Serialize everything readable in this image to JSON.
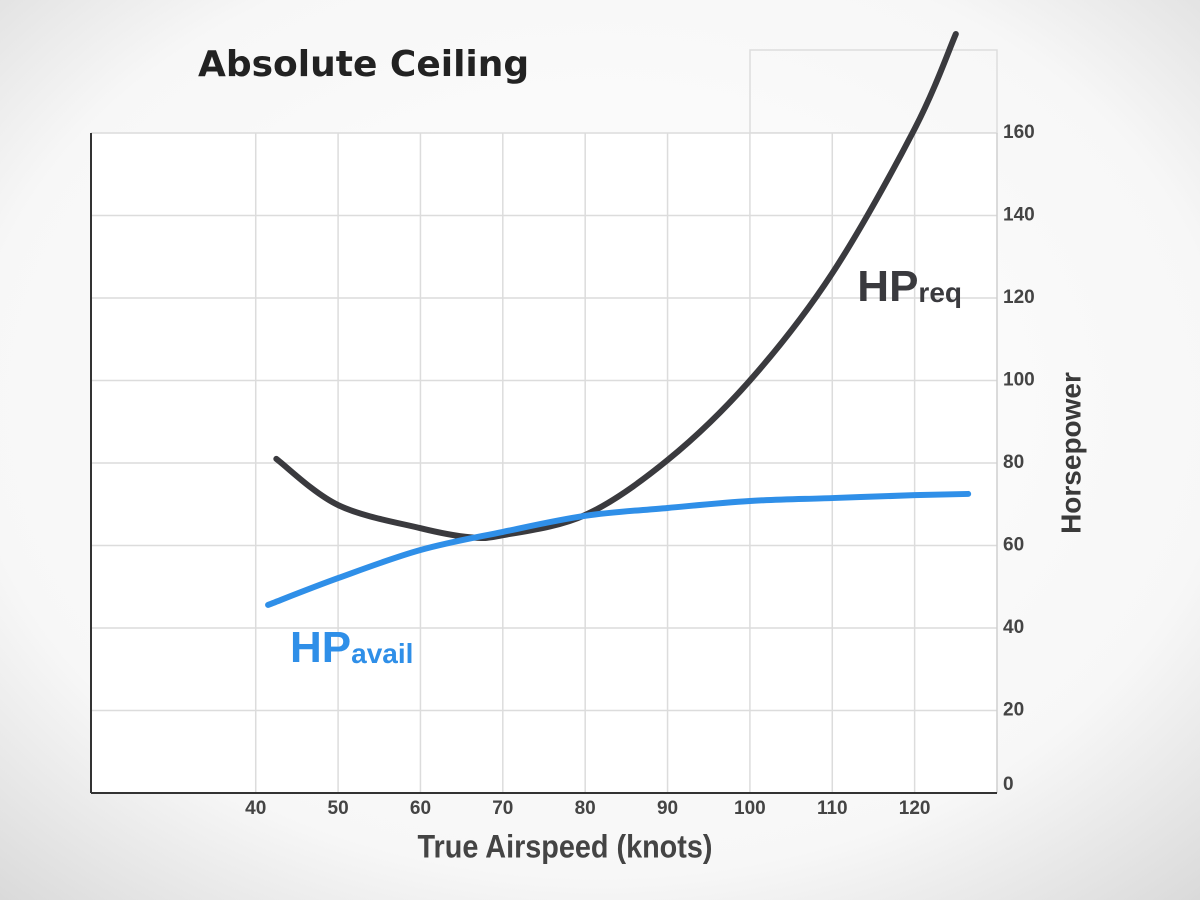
{
  "chart_data": {
    "type": "line",
    "title": "Absolute Ceiling",
    "x_label": "True Airspeed (knots)",
    "y_label": "Horsepower",
    "xlim": [
      20,
      130
    ],
    "xticks": [
      40,
      50,
      60,
      70,
      80,
      90,
      100,
      110,
      120
    ],
    "ylim": [
      0,
      160
    ],
    "yticks": [
      0,
      20,
      40,
      60,
      80,
      100,
      120,
      140,
      160
    ],
    "grid": true,
    "y_axis_side": "right",
    "series": [
      {
        "name": "HP",
        "name_sub": "req",
        "color": "#3a3a3e",
        "x": [
          42.5,
          50,
          60,
          66,
          70,
          80,
          90,
          100,
          110,
          120,
          125
        ],
        "values": [
          81,
          69.8,
          64.2,
          62,
          62.5,
          67.4,
          80.7,
          100,
          126,
          161,
          184
        ]
      },
      {
        "name": "HP",
        "name_sub": "avail",
        "color": "#2f8fe8",
        "x": [
          41.5,
          50,
          60,
          70,
          80,
          90,
          100,
          110,
          120,
          126.5
        ],
        "values": [
          45.6,
          52.1,
          58.9,
          63.3,
          67.2,
          69.1,
          70.8,
          71.5,
          72.2,
          72.5
        ]
      }
    ]
  }
}
